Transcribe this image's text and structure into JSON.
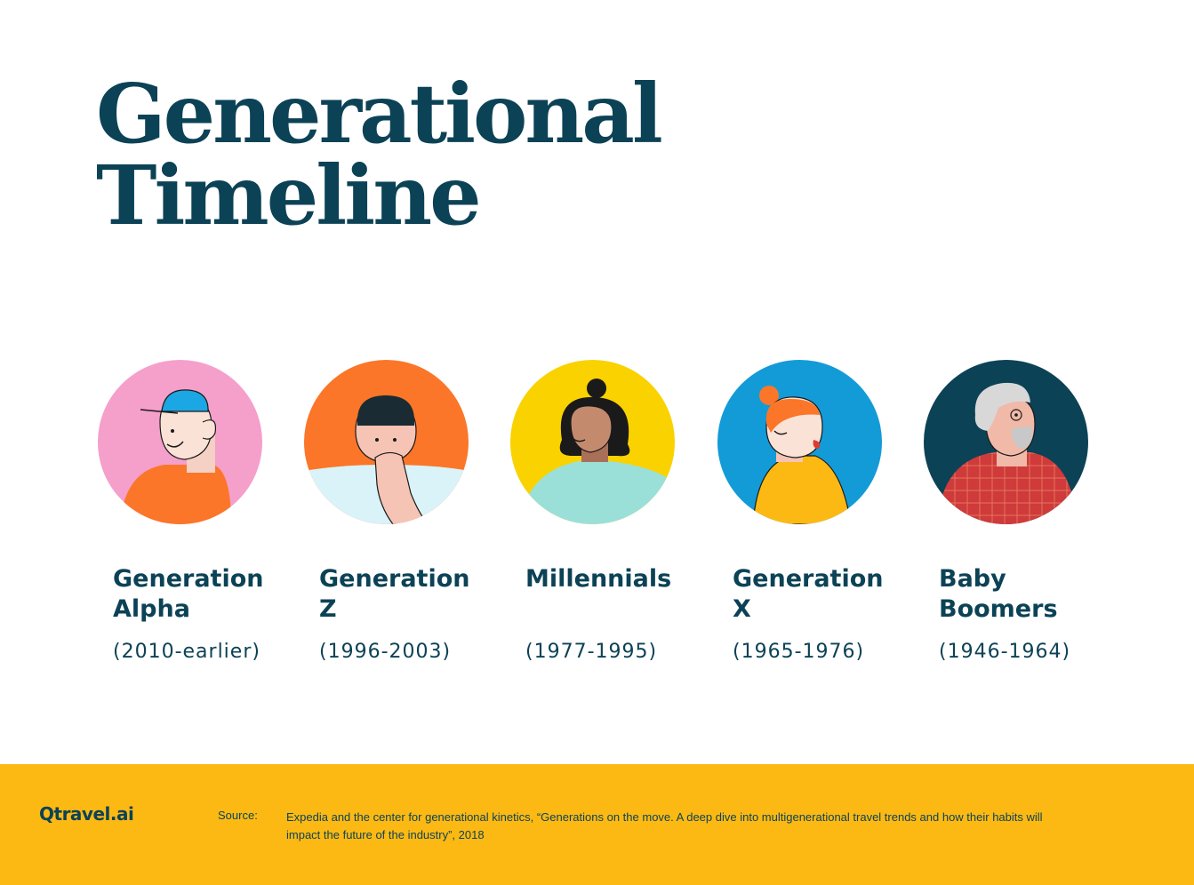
{
  "title": {
    "line1": "Generational",
    "line2": "Timeline"
  },
  "generations": [
    {
      "name_line1": "Generation",
      "name_line2": "Alpha",
      "years": "(2010-earlier)",
      "circle_color": "#f59fcb"
    },
    {
      "name_line1": "Generation",
      "name_line2": "Z",
      "years": "(1996-2003)",
      "circle_color": "#fb7628"
    },
    {
      "name_line1": "Millennials",
      "name_line2": "",
      "years": "(1977-1995)",
      "circle_color": "#f9d200"
    },
    {
      "name_line1": "Generation",
      "name_line2": "X",
      "years": "(1965-1976)",
      "circle_color": "#139bd8"
    },
    {
      "name_line1": "Baby",
      "name_line2": "Boomers",
      "years": "(1946-1964)",
      "circle_color": "#0c4256"
    }
  ],
  "footer": {
    "logo": "Qtravel.ai",
    "source_label": "Source:",
    "source_text": "Expedia and the center for generational kinetics, “Generations on the move. A deep dive into multigenerational travel trends and how their habits will impact the future of the industry”, 2018",
    "background": "#fdb913"
  },
  "colors": {
    "text": "#0c4256",
    "background": "#ffffff"
  }
}
